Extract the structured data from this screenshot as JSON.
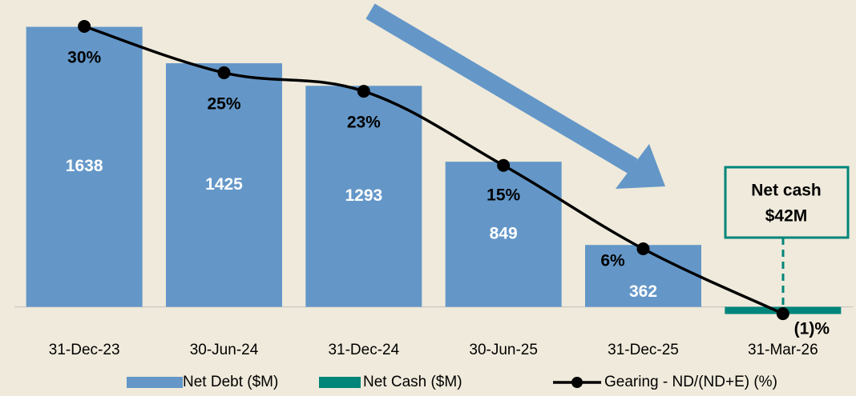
{
  "chart_data": {
    "type": "bar-line",
    "categories": [
      "31-Dec-23",
      "30-Jun-24",
      "31-Dec-24",
      "30-Jun-25",
      "31-Dec-25",
      "31-Mar-26"
    ],
    "series": [
      {
        "name": "Net Debt ($M)",
        "type": "bar",
        "color": "#6497c8",
        "values": [
          1638,
          1425,
          1293,
          849,
          362,
          null
        ]
      },
      {
        "name": "Net Cash ($M)",
        "type": "bar",
        "color": "#00857a",
        "values": [
          null,
          null,
          null,
          null,
          null,
          -42
        ],
        "value_labels": [
          null,
          null,
          null,
          null,
          null,
          "$42M"
        ]
      },
      {
        "name": "Gearing - ND/(ND+E) (%)",
        "type": "line",
        "axis": "y2",
        "color": "#000000",
        "values": [
          30,
          25,
          23,
          15,
          6,
          -1
        ],
        "value_labels": [
          "30%",
          "25%",
          "23%",
          "15%",
          "6%",
          "(1)%"
        ]
      }
    ],
    "annotation": "Net cash",
    "ylim": [
      -105,
      1795
    ],
    "y2lim": [
      -2.2,
      32.85
    ],
    "legend": "bottom"
  }
}
